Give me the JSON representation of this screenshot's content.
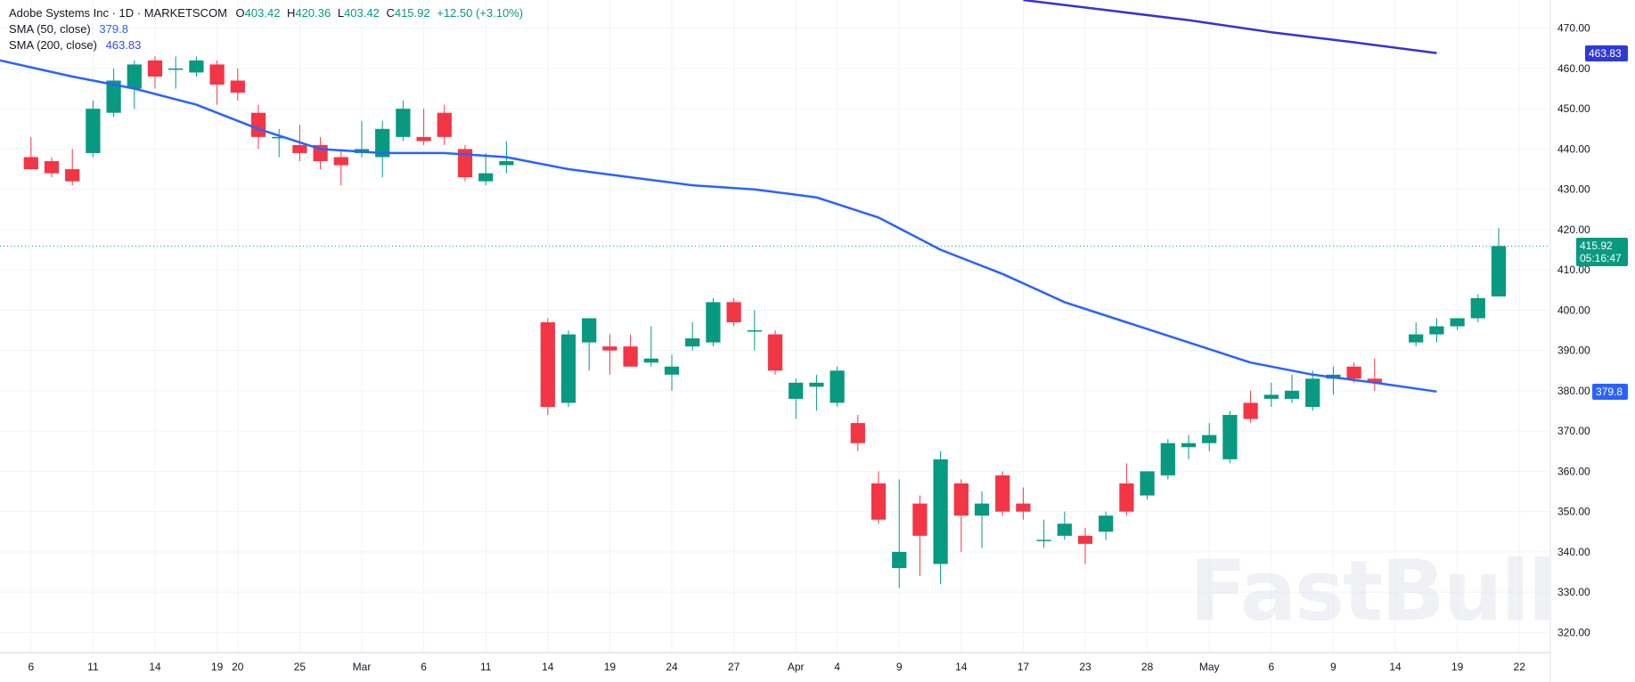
{
  "legend": {
    "symbol": "Adobe Systems Inc · 1D · MARKETSCOM",
    "o_label": "O",
    "o": "403.42",
    "h_label": "H",
    "h": "420.36",
    "l_label": "L",
    "l": "403.42",
    "c_label": "C",
    "c": "415.92",
    "change": "+12.50 (+3.10%)",
    "sma50_label": "SMA (50, close)",
    "sma50_value": "379.8",
    "sma200_label": "SMA (200, close)",
    "sma200_value": "463.83"
  },
  "price_badge": {
    "price": "415.92",
    "countdown": "05:16:47"
  },
  "sma50_badge": "379.8",
  "sma200_badge": "463.83",
  "watermark": "FastBull",
  "colors": {
    "up": "#089981",
    "down": "#f23645",
    "sma50": "#2962ff",
    "sma200": "#3a2fd6",
    "grid": "#f0f3fa",
    "price_line": "#089981"
  },
  "chart_data": {
    "type": "candlestick",
    "ylim": [
      315,
      477
    ],
    "y_ticks": [
      "320.00",
      "330.00",
      "340.00",
      "350.00",
      "360.00",
      "370.00",
      "380.00",
      "390.00",
      "400.00",
      "410.00",
      "420.00",
      "430.00",
      "440.00",
      "450.00",
      "460.00",
      "470.00"
    ],
    "x_tick_labels": [
      "6",
      "11",
      "14",
      "19",
      "20",
      "25",
      "Mar",
      "6",
      "11",
      "14",
      "19",
      "24",
      "27",
      "Apr",
      "4",
      "9",
      "14",
      "17",
      "23",
      "28",
      "May",
      "6",
      "9",
      "14",
      "19",
      "22"
    ],
    "x_tick_days": [
      0,
      3,
      6,
      9,
      10,
      13,
      16,
      19,
      22,
      25,
      28,
      31,
      34,
      37,
      39,
      42,
      45,
      48,
      51,
      54,
      57,
      60,
      63,
      66,
      69,
      72
    ],
    "x_range": [
      -1.5,
      73.5
    ],
    "candles": [
      {
        "d": 0,
        "o": 438,
        "h": 443,
        "l": 435,
        "c": 435
      },
      {
        "d": 1,
        "o": 437,
        "h": 438,
        "l": 433,
        "c": 434
      },
      {
        "d": 2,
        "o": 435,
        "h": 440,
        "l": 431,
        "c": 432
      },
      {
        "d": 3,
        "o": 439,
        "h": 452,
        "l": 438,
        "c": 450
      },
      {
        "d": 4,
        "o": 449,
        "h": 460,
        "l": 448,
        "c": 457
      },
      {
        "d": 5,
        "o": 455,
        "h": 462,
        "l": 450,
        "c": 461
      },
      {
        "d": 6,
        "o": 462,
        "h": 463,
        "l": 455,
        "c": 458
      },
      {
        "d": 7,
        "o": 460,
        "h": 463,
        "l": 455,
        "c": 460
      },
      {
        "d": 8,
        "o": 459,
        "h": 463,
        "l": 458,
        "c": 462
      },
      {
        "d": 9,
        "o": 461,
        "h": 462,
        "l": 451,
        "c": 456
      },
      {
        "d": 10,
        "o": 457,
        "h": 460,
        "l": 452,
        "c": 454
      },
      {
        "d": 11,
        "o": 449,
        "h": 451,
        "l": 440,
        "c": 443
      },
      {
        "d": 12,
        "o": 443,
        "h": 445,
        "l": 438,
        "c": 443
      },
      {
        "d": 13,
        "o": 441,
        "h": 446,
        "l": 437,
        "c": 439
      },
      {
        "d": 14,
        "o": 441,
        "h": 443,
        "l": 435,
        "c": 437
      },
      {
        "d": 15,
        "o": 438,
        "h": 440,
        "l": 431,
        "c": 436
      },
      {
        "d": 16,
        "o": 439,
        "h": 447,
        "l": 438,
        "c": 440
      },
      {
        "d": 17,
        "o": 438,
        "h": 447,
        "l": 433,
        "c": 445
      },
      {
        "d": 18,
        "o": 443,
        "h": 452,
        "l": 442,
        "c": 450
      },
      {
        "d": 19,
        "o": 443,
        "h": 450,
        "l": 441,
        "c": 442
      },
      {
        "d": 20,
        "o": 449,
        "h": 451,
        "l": 441,
        "c": 443
      },
      {
        "d": 21,
        "o": 440,
        "h": 441,
        "l": 432,
        "c": 433
      },
      {
        "d": 22,
        "o": 432,
        "h": 439,
        "l": 431,
        "c": 434
      },
      {
        "d": 23,
        "o": 436,
        "h": 442,
        "l": 434,
        "c": 437
      },
      {
        "d": 25,
        "o": 397,
        "h": 398,
        "l": 374,
        "c": 376
      },
      {
        "d": 26,
        "o": 377,
        "h": 395,
        "l": 376,
        "c": 394
      },
      {
        "d": 27,
        "o": 392,
        "h": 398,
        "l": 385,
        "c": 398
      },
      {
        "d": 28,
        "o": 391,
        "h": 394,
        "l": 384,
        "c": 390
      },
      {
        "d": 29,
        "o": 391,
        "h": 394,
        "l": 386,
        "c": 386
      },
      {
        "d": 30,
        "o": 387,
        "h": 396,
        "l": 386,
        "c": 388
      },
      {
        "d": 31,
        "o": 384,
        "h": 389,
        "l": 380,
        "c": 386
      },
      {
        "d": 32,
        "o": 391,
        "h": 397,
        "l": 390,
        "c": 393
      },
      {
        "d": 33,
        "o": 392,
        "h": 403,
        "l": 391,
        "c": 402
      },
      {
        "d": 34,
        "o": 402,
        "h": 403,
        "l": 396,
        "c": 397
      },
      {
        "d": 35,
        "o": 395,
        "h": 400,
        "l": 390,
        "c": 395
      },
      {
        "d": 36,
        "o": 394,
        "h": 395,
        "l": 384,
        "c": 385
      },
      {
        "d": 37,
        "o": 378,
        "h": 383,
        "l": 373,
        "c": 382
      },
      {
        "d": 38,
        "o": 381,
        "h": 384,
        "l": 375,
        "c": 382
      },
      {
        "d": 39,
        "o": 377,
        "h": 386,
        "l": 376,
        "c": 385
      },
      {
        "d": 40,
        "o": 372,
        "h": 374,
        "l": 365,
        "c": 367
      },
      {
        "d": 41,
        "o": 357,
        "h": 360,
        "l": 347,
        "c": 348
      },
      {
        "d": 42,
        "o": 336,
        "h": 358,
        "l": 331,
        "c": 340
      },
      {
        "d": 43,
        "o": 352,
        "h": 354,
        "l": 334,
        "c": 344
      },
      {
        "d": 44,
        "o": 337,
        "h": 365,
        "l": 332,
        "c": 363
      },
      {
        "d": 45,
        "o": 357,
        "h": 358,
        "l": 340,
        "c": 349
      },
      {
        "d": 46,
        "o": 349,
        "h": 355,
        "l": 341,
        "c": 352
      },
      {
        "d": 47,
        "o": 359,
        "h": 360,
        "l": 349,
        "c": 350
      },
      {
        "d": 48,
        "o": 352,
        "h": 356,
        "l": 348,
        "c": 350
      },
      {
        "d": 49,
        "o": 343,
        "h": 348,
        "l": 341,
        "c": 343
      },
      {
        "d": 50,
        "o": 344,
        "h": 350,
        "l": 343,
        "c": 347
      },
      {
        "d": 51,
        "o": 344,
        "h": 346,
        "l": 337,
        "c": 342
      },
      {
        "d": 52,
        "o": 345,
        "h": 350,
        "l": 343,
        "c": 349
      },
      {
        "d": 53,
        "o": 357,
        "h": 362,
        "l": 349,
        "c": 350
      },
      {
        "d": 54,
        "o": 354,
        "h": 360,
        "l": 353,
        "c": 360
      },
      {
        "d": 55,
        "o": 359,
        "h": 368,
        "l": 358,
        "c": 367
      },
      {
        "d": 56,
        "o": 366,
        "h": 369,
        "l": 363,
        "c": 367
      },
      {
        "d": 57,
        "o": 367,
        "h": 372,
        "l": 365,
        "c": 369
      },
      {
        "d": 58,
        "o": 363,
        "h": 375,
        "l": 362,
        "c": 374
      },
      {
        "d": 59,
        "o": 377,
        "h": 380,
        "l": 372,
        "c": 373
      },
      {
        "d": 60,
        "o": 378,
        "h": 382,
        "l": 376,
        "c": 379
      },
      {
        "d": 61,
        "o": 378,
        "h": 384,
        "l": 377,
        "c": 380
      },
      {
        "d": 62,
        "o": 376,
        "h": 385,
        "l": 375,
        "c": 383
      },
      {
        "d": 63,
        "o": 383,
        "h": 386,
        "l": 379,
        "c": 384
      },
      {
        "d": 64,
        "o": 386,
        "h": 387,
        "l": 382,
        "c": 383
      },
      {
        "d": 65,
        "o": 383,
        "h": 388,
        "l": 380,
        "c": 382
      },
      {
        "d": 67,
        "o": 392,
        "h": 397,
        "l": 391,
        "c": 394
      },
      {
        "d": 68,
        "o": 394,
        "h": 398,
        "l": 392,
        "c": 396
      },
      {
        "d": 69,
        "o": 396,
        "h": 398,
        "l": 395,
        "c": 398
      },
      {
        "d": 70,
        "o": 398,
        "h": 404,
        "l": 397,
        "c": 403
      },
      {
        "d": 71,
        "o": 403.42,
        "h": 420.36,
        "l": 403.42,
        "c": 415.92
      }
    ],
    "series": [
      {
        "name": "SMA (50, close)",
        "points": [
          [
            -1.5,
            462
          ],
          [
            2,
            458
          ],
          [
            5,
            455
          ],
          [
            8,
            451
          ],
          [
            11,
            445
          ],
          [
            14,
            440
          ],
          [
            17,
            439
          ],
          [
            20,
            439
          ],
          [
            23,
            438
          ],
          [
            26,
            435
          ],
          [
            29,
            433
          ],
          [
            32,
            431
          ],
          [
            35,
            430
          ],
          [
            38,
            428
          ],
          [
            41,
            423
          ],
          [
            44,
            415
          ],
          [
            47,
            409
          ],
          [
            50,
            402
          ],
          [
            53,
            397
          ],
          [
            56,
            392
          ],
          [
            59,
            387
          ],
          [
            62,
            384
          ],
          [
            65,
            382
          ],
          [
            68,
            379.8
          ]
        ]
      },
      {
        "name": "SMA (200, close)",
        "points": [
          [
            48,
            477
          ],
          [
            52,
            474.5
          ],
          [
            56,
            472
          ],
          [
            60,
            469
          ],
          [
            64,
            466.5
          ],
          [
            68,
            463.83
          ]
        ]
      }
    ]
  }
}
